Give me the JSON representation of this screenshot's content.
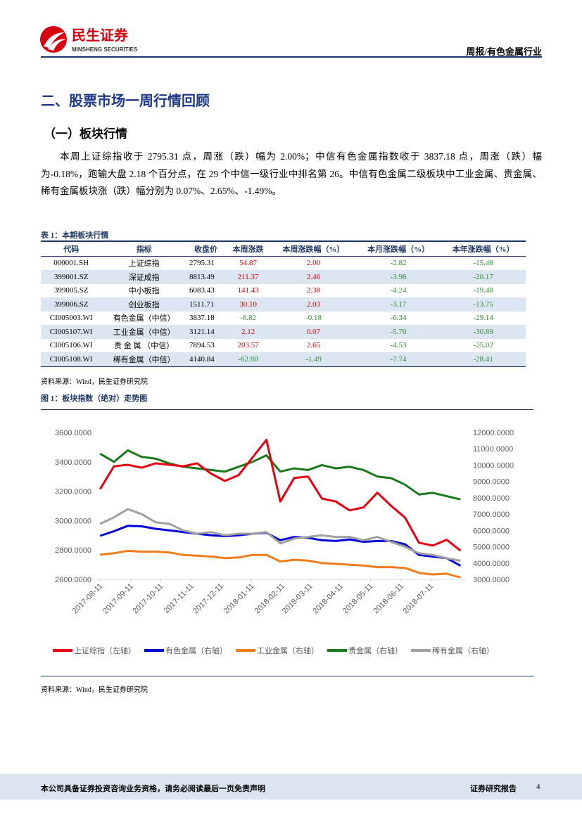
{
  "header": {
    "logo_cn": "民生证券",
    "logo_en": "MINSHENG SECURITIES",
    "report_type": "周报/有色金属行业"
  },
  "section_title": "二、股票市场一周行情回顾",
  "subsection_title": "（一）板块行情",
  "paragraph": "本周上证综指收于 2795.31 点，周涨（跌）幅为 2.00%；中信有色金属指数收于 3837.18 点，周涨（跌）幅为-0.18%，跑输大盘 2.18 个百分点，在 29 个中信一级行业中排名第 26。中信有色金属二级板块中工业金属、贵金属、稀有金属板块涨（跌）幅分别为 0.07%、2.65%、-1.49%。",
  "table": {
    "caption": "表 1：本期板块行情",
    "columns": [
      "代码",
      "指标",
      "收盘价",
      "本周涨跌",
      "本周涨跌幅（%）",
      "本月涨跌幅（%）",
      "本年涨跌幅（%）"
    ],
    "rows": [
      [
        "000001.SH",
        "上证综指",
        "2795.31",
        "54.87",
        "2.00",
        "-2.82",
        "-15.48"
      ],
      [
        "399001.SZ",
        "深证成指",
        "8813.49",
        "211.37",
        "2.46",
        "-3.98",
        "-20.17"
      ],
      [
        "399005.SZ",
        "中小板指",
        "6083.43",
        "141.43",
        "2.38",
        "-4.24",
        "-19.48"
      ],
      [
        "399006.SZ",
        "创业板指",
        "1511.71",
        "30.10",
        "2.03",
        "-3.17",
        "-13.75"
      ],
      [
        "CI005003.WI",
        "有色金属（中信）",
        "3837.18",
        "-6.82",
        "-0.18",
        "-6.34",
        "-29.14"
      ],
      [
        "CI005107.WI",
        "工业金属（中信）",
        "3121.14",
        "2.12",
        "0.07",
        "-5.70",
        "-30.89"
      ],
      [
        "CI005106.WI",
        "贵 金 属 （中信）",
        "7894.53",
        "203.57",
        "2.65",
        "-4.53",
        "-25.02"
      ],
      [
        "CI005108.WI",
        "稀有金属（中信）",
        "4140.84",
        "-62.80",
        "-1.49",
        "-7.74",
        "-28.41"
      ]
    ],
    "source": "资料来源：Wind，民生证券研究院"
  },
  "figure": {
    "caption": "图 1：板块指数（绝对）走势图",
    "source": "资料来源：Wind，民生证券研究院"
  },
  "chart_data": {
    "type": "line",
    "x": [
      "2017-08-11",
      "2017-08-25",
      "2017-09-08",
      "2017-09-22",
      "2017-10-06",
      "2017-10-20",
      "2017-11-03",
      "2017-11-17",
      "2017-12-01",
      "2017-12-15",
      "2017-12-29",
      "2018-01-12",
      "2018-01-26",
      "2018-02-09",
      "2018-02-23",
      "2018-03-09",
      "2018-03-23",
      "2018-04-06",
      "2018-04-20",
      "2018-05-04",
      "2018-05-18",
      "2018-06-01",
      "2018-06-15",
      "2018-06-29",
      "2018-07-13",
      "2018-07-27",
      "2018-08-10"
    ],
    "xlim": [
      "2017-08-08",
      "2018-08-14"
    ],
    "xticks": [
      "2017-08-11",
      "2017-09-11",
      "2017-10-11",
      "2017-11-11",
      "2017-12-11",
      "2018-01-11",
      "2018-02-11",
      "2018-03-11",
      "2018-04-11",
      "2018-05-11",
      "2018-06-11",
      "2018-07-11"
    ],
    "ylim": [
      2600,
      3600
    ],
    "yticks": [
      {
        "value": 2600,
        "label": "2600.0000"
      },
      {
        "value": 2800,
        "label": "2800.0000"
      },
      {
        "value": 3000,
        "label": "3000.0000"
      },
      {
        "value": 3200,
        "label": "3200.0000"
      },
      {
        "value": 3400,
        "label": "3400.0000"
      },
      {
        "value": 3600,
        "label": "3600.0000"
      }
    ],
    "y2lim": [
      3000,
      12000
    ],
    "y2ticks": [
      {
        "value": 3000,
        "label": "3000.0000"
      },
      {
        "value": 4000,
        "label": "4000.0000"
      },
      {
        "value": 5000,
        "label": "5000.0000"
      },
      {
        "value": 6000,
        "label": "6000.0000"
      },
      {
        "value": 7000,
        "label": "7000.0000"
      },
      {
        "value": 8000,
        "label": "8000.0000"
      },
      {
        "value": 9000,
        "label": "9000.0000"
      },
      {
        "value": 10000,
        "label": "10000.0000"
      },
      {
        "value": 11000,
        "label": "11000.0000"
      },
      {
        "value": 12000,
        "label": "12000.0000"
      }
    ],
    "series": [
      {
        "name": "上证综指（左轴）",
        "color": "#e60012",
        "values": [
          3214,
          3370,
          3380,
          3360,
          3390,
          3380,
          3370,
          3390,
          3320,
          3270,
          3310,
          3430,
          3550,
          3130,
          3290,
          3300,
          3150,
          3130,
          3070,
          3090,
          3190,
          3100,
          3020,
          2850,
          2830,
          2870,
          2795.31
        ]
      },
      {
        "name": "有色金属（右轴）",
        "color": "#0000d8",
        "axis": "y2",
        "values": [
          5670,
          5950,
          6280,
          6250,
          6100,
          6000,
          5900,
          5800,
          5700,
          5650,
          5700,
          5800,
          5850,
          5400,
          5600,
          5550,
          5400,
          5350,
          5450,
          5300,
          5350,
          5350,
          5150,
          4500,
          4400,
          4300,
          3837.18
        ]
      },
      {
        "name": "工业金属（右轴）",
        "color": "#f07c1e",
        "axis": "y2",
        "values": [
          4510,
          4600,
          4750,
          4700,
          4700,
          4650,
          4500,
          4450,
          4400,
          4300,
          4350,
          4500,
          4500,
          4100,
          4200,
          4150,
          4000,
          3950,
          3900,
          3850,
          3750,
          3750,
          3700,
          3400,
          3300,
          3350,
          3121.14
        ]
      },
      {
        "name": "贵金属（右轴）",
        "color": "#1a7a1a",
        "axis": "y2",
        "values": [
          10700,
          10200,
          10900,
          10500,
          10400,
          10100,
          9900,
          9800,
          9700,
          9600,
          9900,
          10200,
          10600,
          9600,
          9800,
          9700,
          10000,
          9800,
          9900,
          9700,
          9300,
          9200,
          8800,
          8200,
          8300,
          8100,
          7894.53
        ]
      },
      {
        "name": "稀有金属（右轴）",
        "color": "#a0a0a0",
        "axis": "y2",
        "values": [
          6400,
          6800,
          7300,
          7000,
          6500,
          6400,
          6000,
          5800,
          5900,
          5700,
          5800,
          5800,
          5900,
          5200,
          5500,
          5600,
          5700,
          5600,
          5600,
          5400,
          5600,
          5300,
          5000,
          4600,
          4500,
          4300,
          4140.84
        ]
      }
    ]
  },
  "footer": {
    "disclaimer": "本公司具备证券投资咨询业务资格，请务必阅读最后一页免责声明",
    "label": "证券研究报告",
    "page": "4"
  }
}
